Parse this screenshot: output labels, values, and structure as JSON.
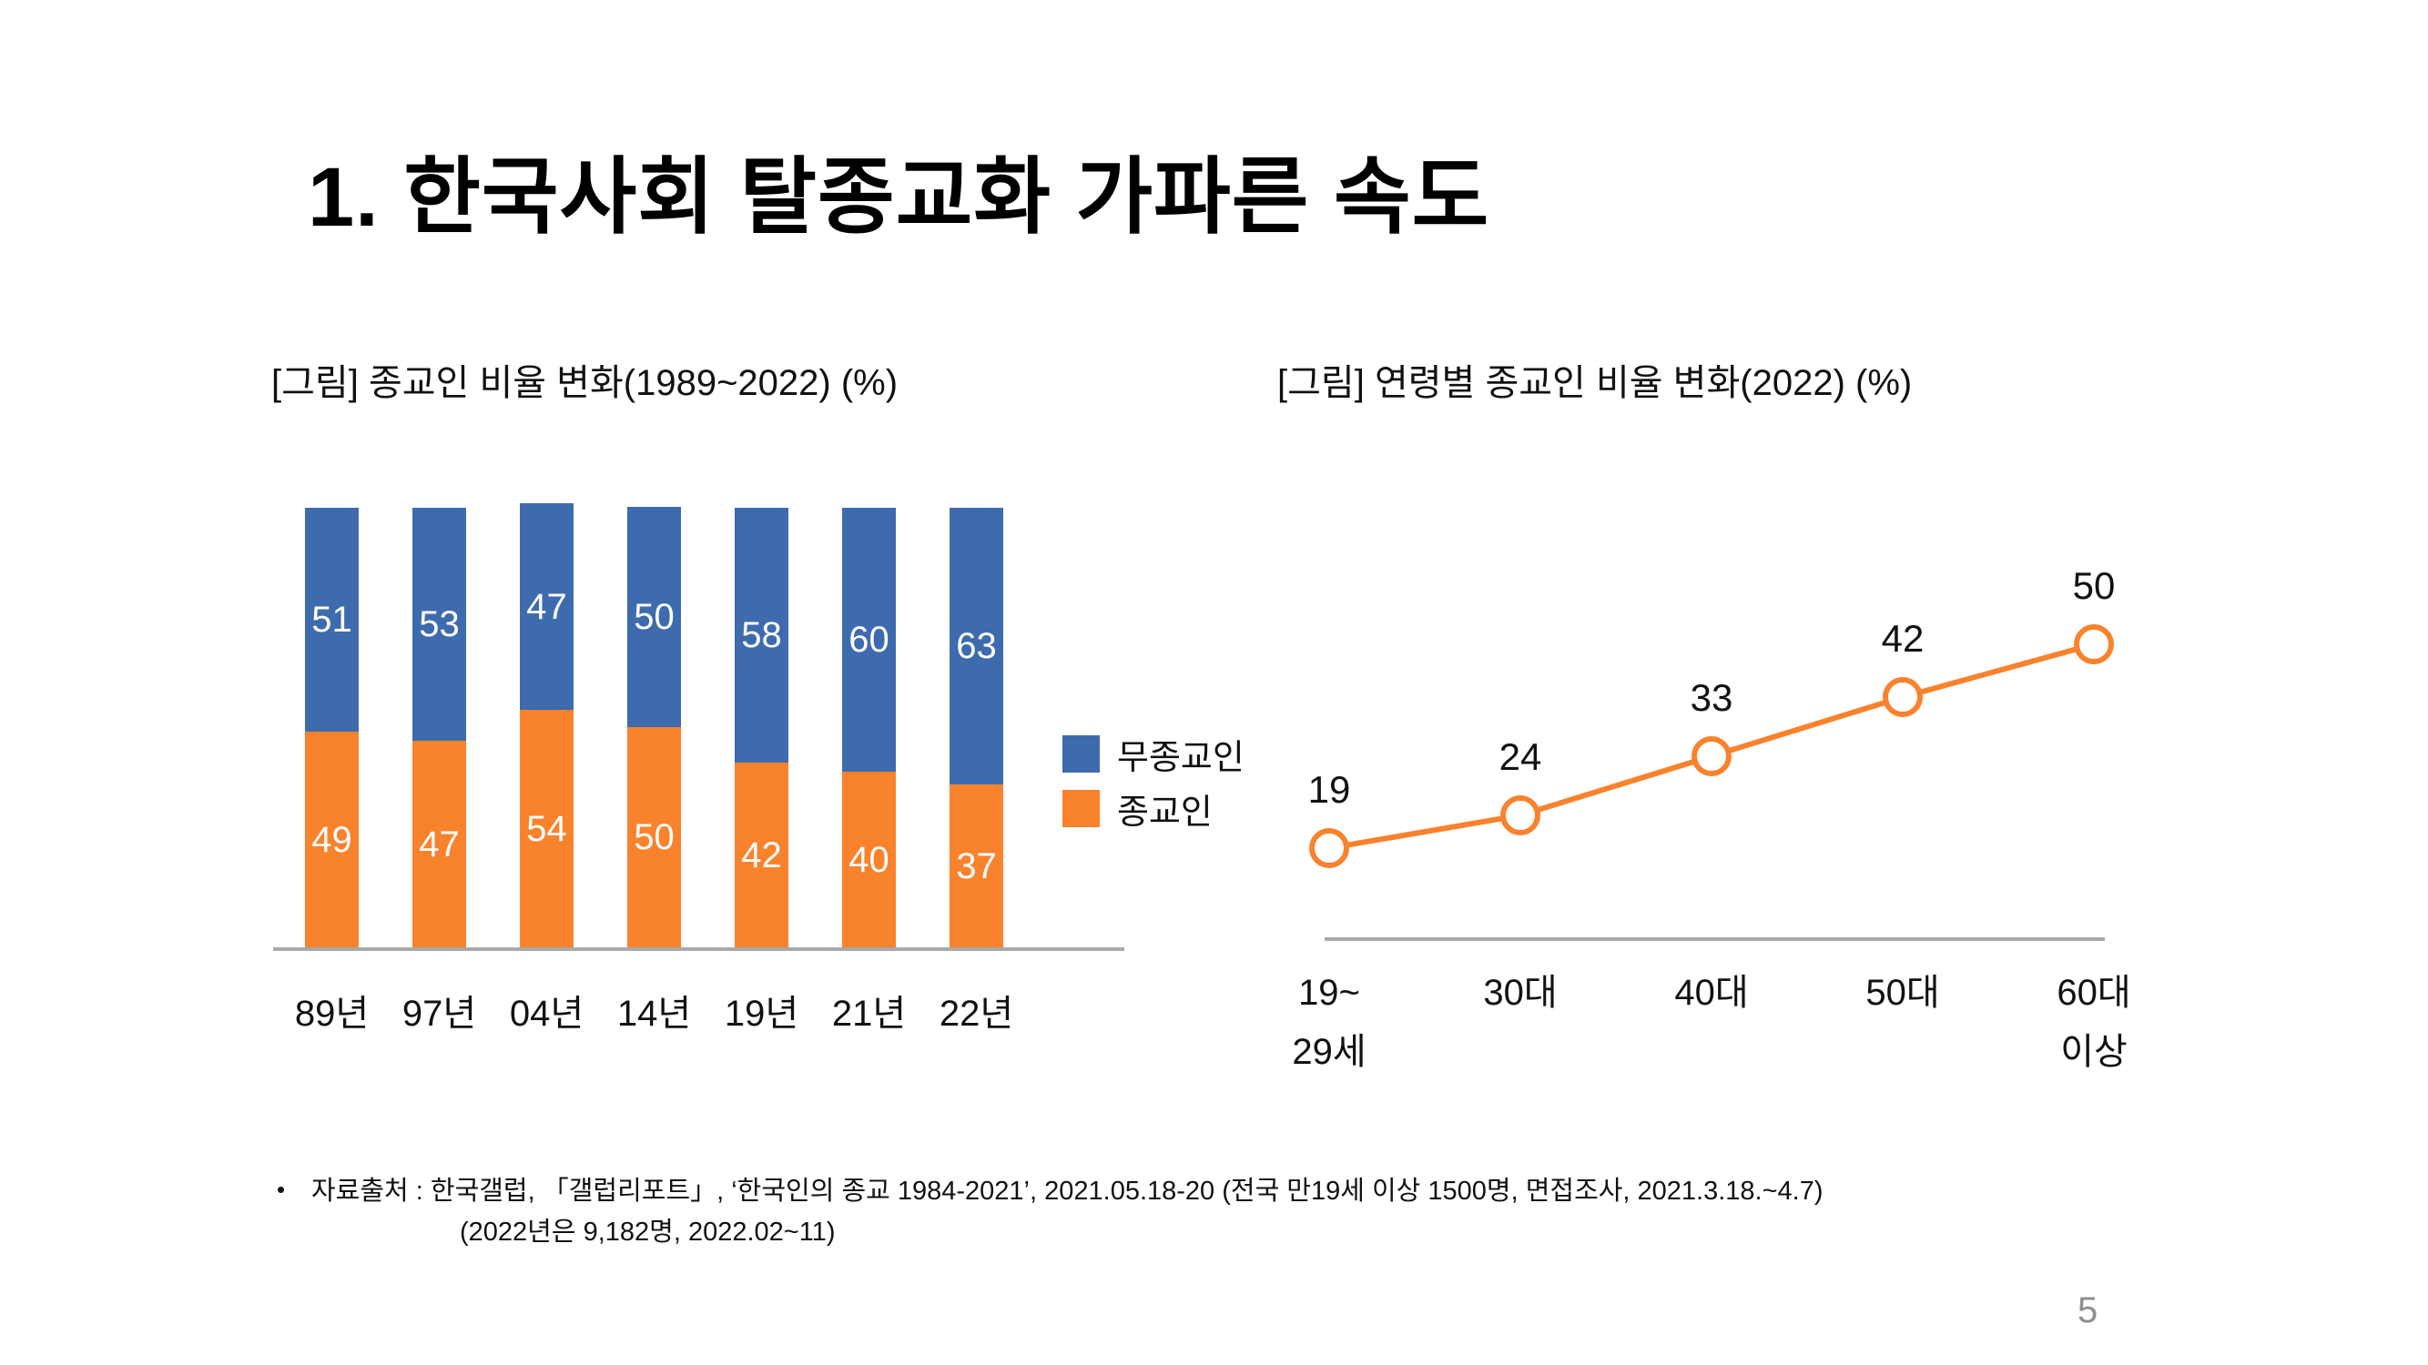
{
  "slide": {
    "title": "1. 한국사회 탈종교화 가파른 속도",
    "page_number": "5",
    "footnote_bullet": "•",
    "footnote_line1": "자료출처 : 한국갤럽, 「갤럽리포트」, ‘한국인의 종교 1984-2021’, 2021.05.18-20 (전국 만19세 이상 1500명, 면접조사, 2021.3.18.~4.7)",
    "footnote_line2": "(2022년은 9,182명, 2022.02~11)"
  },
  "colors": {
    "blue": "#3e6bad",
    "orange": "#f9822c",
    "axis_gray": "#a9a9a9",
    "page_gray": "#8f8f8f",
    "label_white": "#ffffff"
  },
  "chart_data": [
    {
      "id": "religion-ratio-by-year",
      "type": "bar",
      "stacked": true,
      "title": "[그림] 종교인 비율 변화(1989~2022) (%)",
      "categories": [
        "89년",
        "97년",
        "04년",
        "14년",
        "19년",
        "21년",
        "22년"
      ],
      "series": [
        {
          "name": "종교인",
          "color_key": "orange",
          "position": "bottom",
          "values": [
            49,
            47,
            54,
            50,
            42,
            40,
            37
          ]
        },
        {
          "name": "무종교인",
          "color_key": "blue",
          "position": "top",
          "values": [
            51,
            53,
            47,
            50,
            58,
            60,
            63
          ]
        }
      ],
      "legend": [
        {
          "label": "무종교인",
          "color_key": "blue"
        },
        {
          "label": "종교인",
          "color_key": "orange"
        }
      ],
      "ylim": [
        0,
        101
      ],
      "grid": false,
      "value_labels": "centered-in-segment, white"
    },
    {
      "id": "religion-ratio-by-age",
      "type": "line",
      "title": "[그림] 연령별 종교인 비율 변화(2022) (%)",
      "categories": [
        [
          "19~",
          "29세"
        ],
        [
          "30대"
        ],
        [
          "40대"
        ],
        [
          "50대"
        ],
        [
          "60대",
          "이상"
        ]
      ],
      "values": [
        19,
        24,
        33,
        42,
        50
      ],
      "marker": "open-circle, orange stroke, white fill",
      "grid": false,
      "y_axis_visible": false,
      "value_labels": "above markers, black"
    }
  ]
}
